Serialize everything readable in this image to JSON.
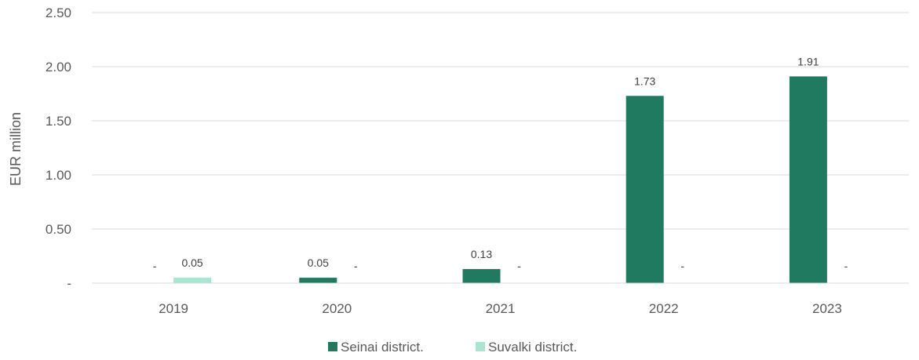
{
  "chart_data": {
    "type": "bar",
    "ylabel": "EUR million",
    "categories": [
      "2019",
      "2020",
      "2021",
      "2022",
      "2023"
    ],
    "ylim": [
      0,
      2.5
    ],
    "yticks": [
      "-",
      "0.50",
      "1.00",
      "1.50",
      "2.00",
      "2.50"
    ],
    "grid": true,
    "legend_position": "bottom",
    "series": [
      {
        "name": "Seinai district.",
        "color": "#1f7a60",
        "values": [
          0,
          0.05,
          0.13,
          1.73,
          1.91
        ],
        "labels": [
          "-",
          "0.05",
          "0.13",
          "1.73",
          "1.91"
        ]
      },
      {
        "name": "Suvalki district.",
        "color": "#a6e6d2",
        "values": [
          0.05,
          0,
          0,
          0,
          0
        ],
        "labels": [
          "0.05",
          "-",
          "-",
          "-",
          "-"
        ]
      }
    ]
  }
}
